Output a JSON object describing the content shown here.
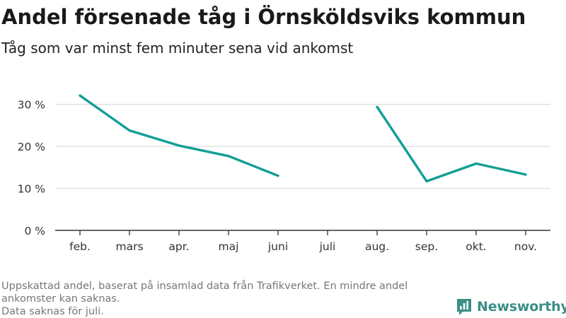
{
  "title": "Andel försenade tåg i Örnsköldsviks kommun",
  "subtitle": "Tåg som var minst fem minuter sena vid ankomst",
  "footnotes": [
    "Uppskattad andel, baserat på insamlad data från Trafikverket. En mindre andel ankomster kan saknas.",
    "Data saknas för juli."
  ],
  "brand": {
    "name": "Newsworthy",
    "icon": "newsworthy-logo-icon",
    "color": "#3a8f86"
  },
  "chart_data": {
    "type": "line",
    "categories": [
      "feb.",
      "mars",
      "apr.",
      "maj",
      "juni",
      "juli",
      "aug.",
      "sep.",
      "okt.",
      "nov."
    ],
    "series": [
      {
        "values": [
          32.1,
          23.8,
          20.2,
          17.7,
          13.0,
          null,
          29.4,
          11.7,
          15.9,
          13.3
        ],
        "color": "#109e96"
      }
    ],
    "yticks": [
      0,
      10,
      20,
      30
    ],
    "ytick_labels": [
      "0 %",
      "10 %",
      "20 %",
      "30 %"
    ],
    "ylim": [
      0,
      35
    ],
    "grid": true,
    "legend": "none"
  }
}
